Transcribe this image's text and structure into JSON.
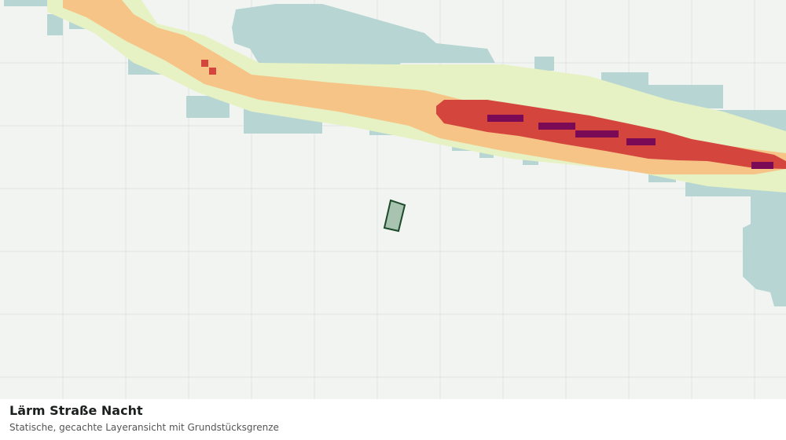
{
  "caption": {
    "title": "Lärm Straße Nacht",
    "subtitle": "Statische, gecachte Layeransicht mit Grundstücksgrenze"
  }
}
